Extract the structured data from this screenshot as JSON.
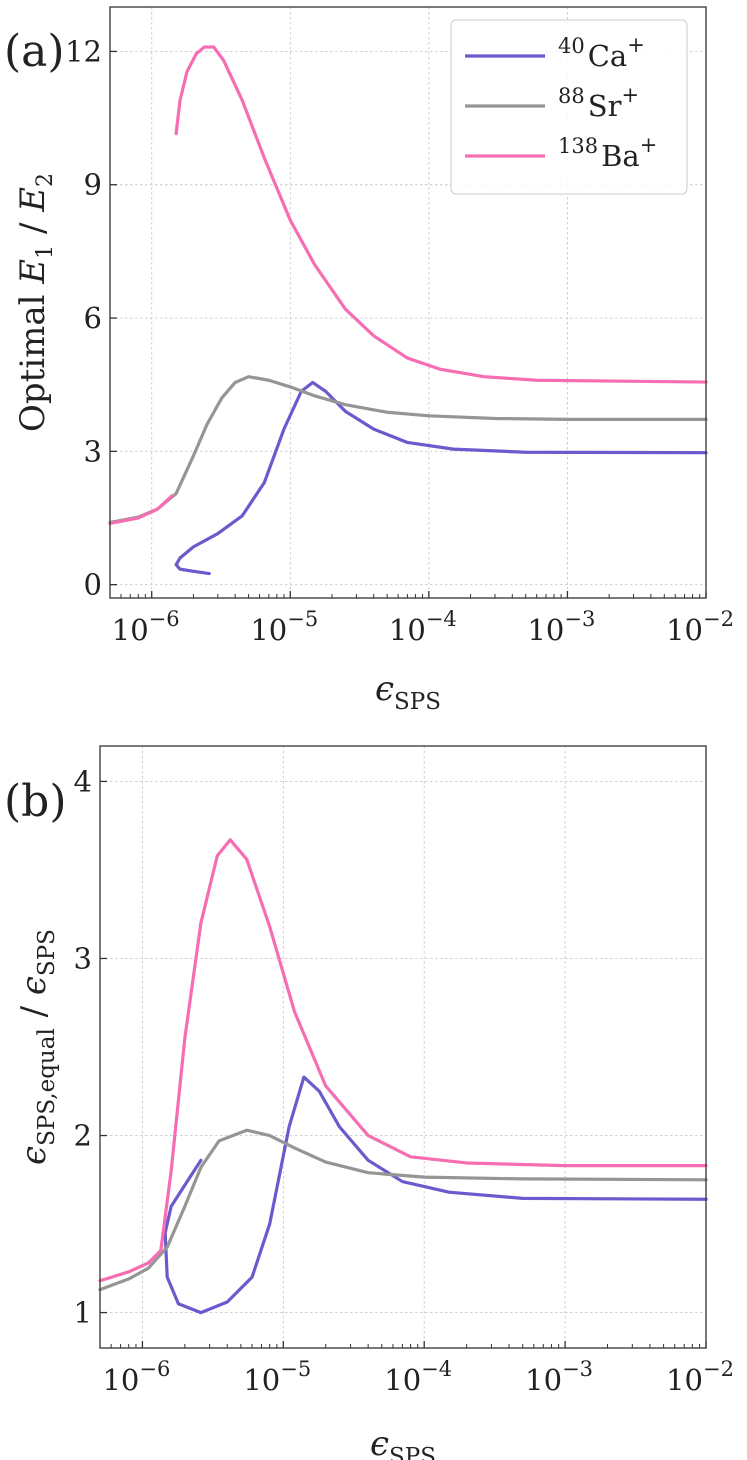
{
  "colors": {
    "Ca": "#6a5acd",
    "Sr": "#959595",
    "Ba": "#f76db4"
  },
  "chart_data": [
    {
      "panel": "(a)",
      "type": "line",
      "xscale": "log",
      "xlim": [
        5e-07,
        0.01
      ],
      "ylim": [
        -0.3,
        13.0
      ],
      "xlabel": "ϵ_SPS",
      "ylabel": "Optimal E1 / E2",
      "grid": true,
      "x_ticks": [
        {
          "value": 1e-06,
          "base": "10",
          "exp": "−6"
        },
        {
          "value": 1e-05,
          "base": "10",
          "exp": "−5"
        },
        {
          "value": 0.0001,
          "base": "10",
          "exp": "−4"
        },
        {
          "value": 0.001,
          "base": "10",
          "exp": "−3"
        },
        {
          "value": 0.01,
          "base": "10",
          "exp": "−2"
        }
      ],
      "y_ticks": [
        0,
        3,
        6,
        9,
        12
      ],
      "legend": {
        "placement": "top-right",
        "entries": [
          {
            "sup": "40",
            "name": "Ca",
            "charge": "+",
            "color_key": "Ca"
          },
          {
            "sup": "88",
            "name": "Sr",
            "charge": "+",
            "color_key": "Sr"
          },
          {
            "sup": "138",
            "name": "Ba",
            "charge": "+",
            "color_key": "Ba"
          }
        ]
      },
      "series": [
        {
          "name": "40Ca+",
          "color_key": "Ca",
          "points": [
            [
              2.6e-06,
              0.25
            ],
            [
              2e-06,
              0.3
            ],
            [
              1.6e-06,
              0.35
            ],
            [
              1.5e-06,
              0.45
            ],
            [
              1.6e-06,
              0.6
            ],
            [
              2e-06,
              0.85
            ],
            [
              3e-06,
              1.15
            ],
            [
              4.5e-06,
              1.55
            ],
            [
              6.5e-06,
              2.3
            ],
            [
              9e-06,
              3.5
            ],
            [
              1.2e-05,
              4.35
            ],
            [
              1.45e-05,
              4.55
            ],
            [
              1.8e-05,
              4.35
            ],
            [
              2.5e-05,
              3.9
            ],
            [
              4e-05,
              3.5
            ],
            [
              7e-05,
              3.2
            ],
            [
              0.00015,
              3.05
            ],
            [
              0.0005,
              2.98
            ],
            [
              0.01,
              2.97
            ]
          ]
        },
        {
          "name": "88Sr+",
          "color_key": "Sr",
          "points": [
            [
              5e-07,
              1.4
            ],
            [
              8e-07,
              1.52
            ],
            [
              1.1e-06,
              1.7
            ],
            [
              1.5e-06,
              2.05
            ],
            [
              2e-06,
              2.9
            ],
            [
              2.5e-06,
              3.6
            ],
            [
              3.2e-06,
              4.2
            ],
            [
              4e-06,
              4.55
            ],
            [
              5e-06,
              4.68
            ],
            [
              7e-06,
              4.6
            ],
            [
              1e-05,
              4.45
            ],
            [
              1.5e-05,
              4.25
            ],
            [
              2.5e-05,
              4.05
            ],
            [
              5e-05,
              3.88
            ],
            [
              0.0001,
              3.8
            ],
            [
              0.0003,
              3.74
            ],
            [
              0.001,
              3.72
            ],
            [
              0.01,
              3.72
            ]
          ]
        },
        {
          "name": "138Ba+",
          "color_key": "Ba",
          "points": [
            [
              5e-07,
              1.38
            ],
            [
              8e-07,
              1.5
            ],
            [
              1.1e-06,
              1.7
            ],
            [
              1.4e-06,
              2.0
            ]
          ]
        },
        {
          "name": "138Ba+ (branch)",
          "color_key": "Ba",
          "points": [
            [
              1.5e-06,
              10.15
            ],
            [
              1.6e-06,
              10.9
            ],
            [
              1.8e-06,
              11.55
            ],
            [
              2.1e-06,
              11.95
            ],
            [
              2.4e-06,
              12.1
            ],
            [
              2.8e-06,
              12.1
            ],
            [
              3.3e-06,
              11.8
            ],
            [
              4.5e-06,
              10.9
            ],
            [
              6.5e-06,
              9.6
            ],
            [
              1e-05,
              8.2
            ],
            [
              1.5e-05,
              7.2
            ],
            [
              2.5e-05,
              6.2
            ],
            [
              4e-05,
              5.6
            ],
            [
              7e-05,
              5.1
            ],
            [
              0.00012,
              4.85
            ],
            [
              0.00025,
              4.68
            ],
            [
              0.0006,
              4.6
            ],
            [
              0.01,
              4.56
            ]
          ]
        }
      ]
    },
    {
      "panel": "(b)",
      "type": "line",
      "xscale": "log",
      "xlim": [
        5e-07,
        0.01
      ],
      "ylim": [
        0.8,
        4.2
      ],
      "xlabel": "ϵ_SPS",
      "ylabel": "ϵ_SPS,equal / ϵ_SPS",
      "grid": true,
      "x_ticks": [
        {
          "value": 1e-06,
          "base": "10",
          "exp": "−6"
        },
        {
          "value": 1e-05,
          "base": "10",
          "exp": "−5"
        },
        {
          "value": 0.0001,
          "base": "10",
          "exp": "−4"
        },
        {
          "value": 0.001,
          "base": "10",
          "exp": "−3"
        },
        {
          "value": 0.01,
          "base": "10",
          "exp": "−2"
        }
      ],
      "y_ticks": [
        1,
        2,
        3,
        4
      ],
      "series": [
        {
          "name": "40Ca+",
          "color_key": "Ca",
          "points": [
            [
              2.6e-06,
              1.86
            ],
            [
              2e-06,
              1.72
            ],
            [
              1.6e-06,
              1.6
            ],
            [
              1.45e-06,
              1.45
            ],
            [
              1.5e-06,
              1.2
            ],
            [
              1.8e-06,
              1.05
            ],
            [
              2.6e-06,
              1.0
            ],
            [
              4e-06,
              1.06
            ],
            [
              6e-06,
              1.2
            ],
            [
              8e-06,
              1.5
            ],
            [
              1.1e-05,
              2.05
            ],
            [
              1.4e-05,
              2.33
            ],
            [
              1.8e-05,
              2.25
            ],
            [
              2.5e-05,
              2.05
            ],
            [
              4e-05,
              1.86
            ],
            [
              7e-05,
              1.74
            ],
            [
              0.00015,
              1.68
            ],
            [
              0.0005,
              1.645
            ],
            [
              0.01,
              1.64
            ]
          ]
        },
        {
          "name": "88Sr+",
          "color_key": "Sr",
          "points": [
            [
              5e-07,
              1.13
            ],
            [
              8e-07,
              1.19
            ],
            [
              1.1e-06,
              1.25
            ],
            [
              1.5e-06,
              1.37
            ],
            [
              2e-06,
              1.6
            ],
            [
              2.6e-06,
              1.82
            ],
            [
              3.5e-06,
              1.97
            ],
            [
              5.5e-06,
              2.03
            ],
            [
              8e-06,
              2.0
            ],
            [
              1.2e-05,
              1.93
            ],
            [
              2e-05,
              1.85
            ],
            [
              4e-05,
              1.79
            ],
            [
              0.0001,
              1.765
            ],
            [
              0.0005,
              1.755
            ],
            [
              0.01,
              1.75
            ]
          ]
        },
        {
          "name": "138Ba+",
          "color_key": "Ba",
          "points": [
            [
              5e-07,
              1.18
            ],
            [
              8e-07,
              1.23
            ],
            [
              1.1e-06,
              1.28
            ],
            [
              1.35e-06,
              1.35
            ],
            [
              1.6e-06,
              1.8
            ],
            [
              2e-06,
              2.55
            ],
            [
              2.6e-06,
              3.2
            ],
            [
              3.4e-06,
              3.58
            ],
            [
              4.2e-06,
              3.67
            ],
            [
              5.5e-06,
              3.56
            ],
            [
              8e-06,
              3.18
            ],
            [
              1.2e-05,
              2.7
            ],
            [
              2e-05,
              2.28
            ],
            [
              4e-05,
              2.0
            ],
            [
              8e-05,
              1.88
            ],
            [
              0.0002,
              1.845
            ],
            [
              0.001,
              1.83
            ],
            [
              0.01,
              1.83
            ]
          ]
        }
      ]
    }
  ]
}
